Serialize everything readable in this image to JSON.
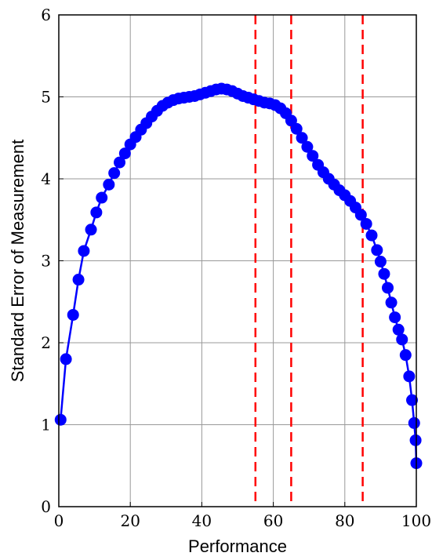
{
  "chart_data": {
    "type": "scatter",
    "title": "",
    "xlabel": "Performance",
    "ylabel": "Standard Error of Measurement",
    "xlim": [
      0,
      100
    ],
    "ylim": [
      0,
      6
    ],
    "x_ticks": [
      "0",
      "20",
      "40",
      "60",
      "80",
      "100"
    ],
    "y_ticks": [
      "0",
      "1",
      "2",
      "3",
      "4",
      "5",
      "6"
    ],
    "grid": true,
    "series": [
      {
        "color": "#0000ff",
        "marker": "circle",
        "connected": true,
        "points": [
          [
            0.5,
            1.06
          ],
          [
            2,
            1.8
          ],
          [
            4,
            2.34
          ],
          [
            5.5,
            2.77
          ],
          [
            7,
            3.12
          ],
          [
            9,
            3.38
          ],
          [
            10.5,
            3.59
          ],
          [
            12,
            3.77
          ],
          [
            14,
            3.93
          ],
          [
            15.5,
            4.07
          ],
          [
            17,
            4.2
          ],
          [
            18.5,
            4.31
          ],
          [
            20,
            4.42
          ],
          [
            21.5,
            4.51
          ],
          [
            23,
            4.6
          ],
          [
            24.5,
            4.68
          ],
          [
            26,
            4.76
          ],
          [
            27.5,
            4.83
          ],
          [
            29,
            4.89
          ],
          [
            30.5,
            4.93
          ],
          [
            32,
            4.96
          ],
          [
            33.5,
            4.98
          ],
          [
            35,
            4.99
          ],
          [
            36.5,
            5.0
          ],
          [
            38,
            5.01
          ],
          [
            39.5,
            5.03
          ],
          [
            41,
            5.05
          ],
          [
            42.5,
            5.07
          ],
          [
            44,
            5.09
          ],
          [
            45.5,
            5.1
          ],
          [
            47,
            5.09
          ],
          [
            48.5,
            5.07
          ],
          [
            50,
            5.04
          ],
          [
            51.5,
            5.01
          ],
          [
            53,
            4.99
          ],
          [
            54.5,
            4.97
          ],
          [
            56,
            4.95
          ],
          [
            57.5,
            4.93
          ],
          [
            59,
            4.92
          ],
          [
            60.5,
            4.9
          ],
          [
            62,
            4.86
          ],
          [
            63.5,
            4.8
          ],
          [
            65,
            4.71
          ],
          [
            66.5,
            4.61
          ],
          [
            68,
            4.5
          ],
          [
            69.5,
            4.39
          ],
          [
            71,
            4.28
          ],
          [
            72.5,
            4.17
          ],
          [
            74,
            4.08
          ],
          [
            75.5,
            4.0
          ],
          [
            77,
            3.93
          ],
          [
            78.5,
            3.86
          ],
          [
            80,
            3.8
          ],
          [
            81.5,
            3.73
          ],
          [
            83,
            3.65
          ],
          [
            84.5,
            3.56
          ],
          [
            86,
            3.45
          ],
          [
            87.5,
            3.31
          ],
          [
            89,
            3.13
          ],
          [
            90,
            2.99
          ],
          [
            91,
            2.84
          ],
          [
            92,
            2.67
          ],
          [
            93,
            2.49
          ],
          [
            94,
            2.31
          ],
          [
            95,
            2.16
          ],
          [
            96,
            2.04
          ],
          [
            97,
            1.85
          ],
          [
            98,
            1.59
          ],
          [
            98.8,
            1.3
          ],
          [
            99.4,
            1.02
          ],
          [
            99.8,
            0.81
          ],
          [
            100,
            0.53
          ]
        ]
      }
    ],
    "reference_lines": [
      {
        "x": 55,
        "style": "dashed",
        "color": "#ff0000"
      },
      {
        "x": 65,
        "style": "dashed",
        "color": "#ff0000"
      },
      {
        "x": 85,
        "style": "dashed",
        "color": "#ff0000"
      }
    ]
  }
}
